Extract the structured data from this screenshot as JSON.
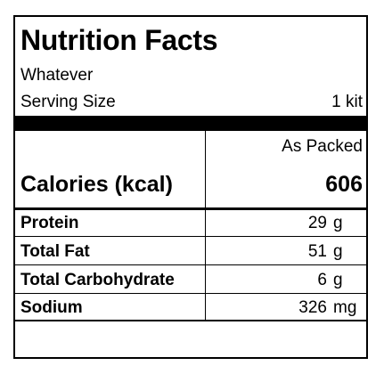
{
  "title": "Nutrition Facts",
  "product_name": "Whatever",
  "serving": {
    "label": "Serving Size",
    "value": "1 kit"
  },
  "column_header": "As Packed",
  "calories": {
    "label": "Calories (kcal)",
    "value": "606"
  },
  "nutrients": [
    {
      "label": "Protein",
      "amount": "29",
      "unit": "g"
    },
    {
      "label": "Total Fat",
      "amount": "51",
      "unit": "g"
    },
    {
      "label": "Total Carbohydrate",
      "amount": "6",
      "unit": "g"
    },
    {
      "label": "Sodium",
      "amount": "326",
      "unit": "mg"
    }
  ]
}
